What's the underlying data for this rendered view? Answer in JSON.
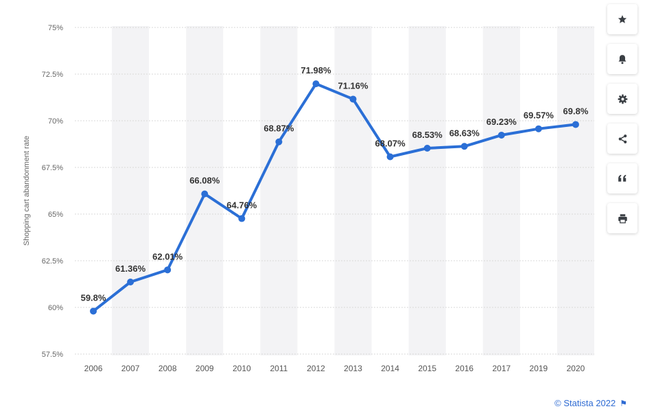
{
  "chart_data": {
    "type": "line",
    "categories": [
      "2006",
      "2007",
      "2008",
      "2009",
      "2010",
      "2011",
      "2012",
      "2013",
      "2014",
      "2015",
      "2016",
      "2017",
      "2019",
      "2020"
    ],
    "series": [
      {
        "values": [
          59.8,
          61.36,
          62.01,
          66.08,
          64.76,
          68.87,
          71.98,
          71.16,
          68.07,
          68.53,
          68.63,
          69.23,
          69.57,
          69.8
        ],
        "labels": [
          "59.8%",
          "61.36%",
          "62.01%",
          "66.08%",
          "64.76%",
          "68.87%",
          "71.98%",
          "71.16%",
          "68.07%",
          "68.53%",
          "68.63%",
          "69.23%",
          "69.57%",
          "69.8%"
        ]
      }
    ],
    "ylabel": "Shopping cart abandonment rate",
    "ylim": [
      57.5,
      75
    ],
    "yticks": [
      57.5,
      60,
      62.5,
      65,
      67.5,
      70,
      72.5,
      75
    ],
    "ytick_labels": [
      "57.5%",
      "60%",
      "62.5%",
      "65%",
      "67.5%",
      "70%",
      "72.5%",
      "75%"
    ],
    "grid": true,
    "line_color": "#2b6fd6"
  },
  "toolbar": {
    "buttons": [
      {
        "name": "favorite-button",
        "icon": "star-icon"
      },
      {
        "name": "notification-button",
        "icon": "bell-icon"
      },
      {
        "name": "settings-button",
        "icon": "gear-icon"
      },
      {
        "name": "share-button",
        "icon": "share-icon"
      },
      {
        "name": "cite-button",
        "icon": "quote-icon"
      },
      {
        "name": "print-button",
        "icon": "print-icon"
      }
    ]
  },
  "credit": {
    "text": "© Statista 2022",
    "icon": "flag-icon",
    "color": "#2e6bd3"
  }
}
